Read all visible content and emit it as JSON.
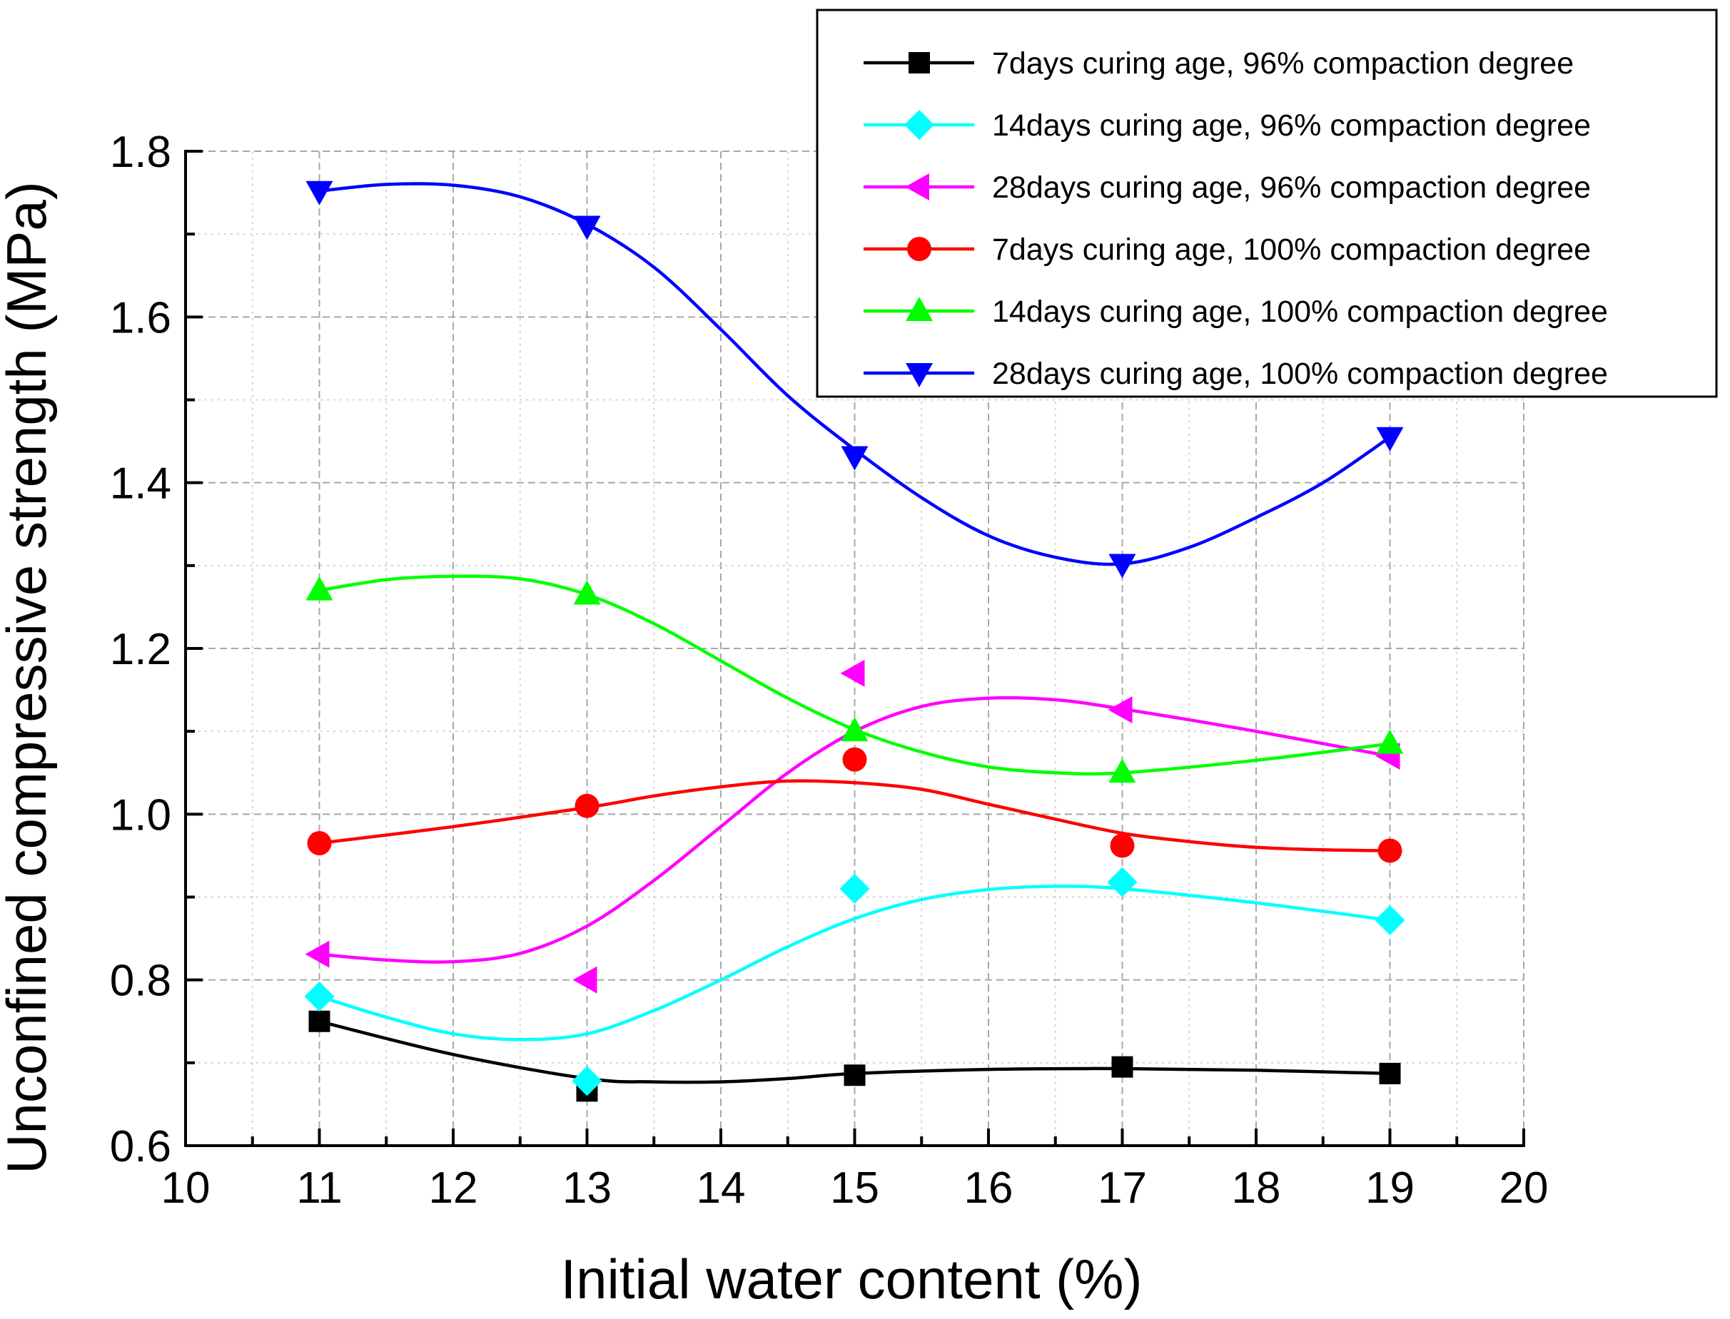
{
  "chart_data": {
    "type": "line",
    "title": "",
    "xlabel": "Initial water content (%)",
    "ylabel": "Unconfined compressive strength (MPa)",
    "xlim": [
      10,
      20
    ],
    "ylim": [
      0.6,
      1.8
    ],
    "x_major_ticks": [
      10,
      11,
      12,
      13,
      14,
      15,
      16,
      17,
      18,
      19,
      20
    ],
    "x_tick_labels": [
      "10",
      "11",
      "12",
      "13",
      "14",
      "15",
      "16",
      "17",
      "18",
      "19",
      "20"
    ],
    "y_major_ticks": [
      0.6,
      0.8,
      1.0,
      1.2,
      1.4,
      1.6,
      1.8
    ],
    "y_tick_labels": [
      "0.6",
      "0.8",
      "1.0",
      "1.2",
      "1.4",
      "1.6",
      "1.8"
    ],
    "grid": true,
    "legend_position": "top-right",
    "series": [
      {
        "name": "7days curing age, 96% compaction degree",
        "color": "#000000",
        "marker": "square",
        "x": [
          11,
          13,
          15,
          17,
          19
        ],
        "values": [
          0.75,
          0.666,
          0.685,
          0.695,
          0.687
        ],
        "fit_curve": [
          [
            11,
            0.75
          ],
          [
            12,
            0.71
          ],
          [
            13,
            0.681
          ],
          [
            13.5,
            0.677
          ],
          [
            14,
            0.677
          ],
          [
            14.5,
            0.681
          ],
          [
            15,
            0.687
          ],
          [
            16,
            0.692
          ],
          [
            17,
            0.693
          ],
          [
            18,
            0.691
          ],
          [
            19,
            0.687
          ]
        ]
      },
      {
        "name": "14days curing age, 96% compaction degree",
        "color": "#00FFFF",
        "marker": "diamond",
        "x": [
          11,
          13,
          15,
          17,
          19
        ],
        "values": [
          0.78,
          0.678,
          0.91,
          0.918,
          0.872
        ],
        "fit_curve": [
          [
            11,
            0.78
          ],
          [
            11.5,
            0.755
          ],
          [
            12,
            0.735
          ],
          [
            12.5,
            0.728
          ],
          [
            13,
            0.735
          ],
          [
            13.5,
            0.763
          ],
          [
            14,
            0.8
          ],
          [
            14.5,
            0.84
          ],
          [
            15,
            0.874
          ],
          [
            15.5,
            0.897
          ],
          [
            16,
            0.909
          ],
          [
            16.5,
            0.913
          ],
          [
            17,
            0.91
          ],
          [
            18,
            0.893
          ],
          [
            19,
            0.872
          ]
        ]
      },
      {
        "name": "28days curing age, 96% compaction degree",
        "color": "#FF00FF",
        "marker": "triangle-left",
        "x": [
          11,
          13,
          15,
          17,
          19
        ],
        "values": [
          0.831,
          0.8,
          1.17,
          1.126,
          1.07
        ],
        "fit_curve": [
          [
            11,
            0.831
          ],
          [
            11.5,
            0.824
          ],
          [
            12,
            0.822
          ],
          [
            12.5,
            0.832
          ],
          [
            13,
            0.865
          ],
          [
            13.5,
            0.92
          ],
          [
            14,
            0.985
          ],
          [
            14.5,
            1.05
          ],
          [
            15,
            1.1
          ],
          [
            15.5,
            1.13
          ],
          [
            16,
            1.14
          ],
          [
            16.5,
            1.138
          ],
          [
            17,
            1.127
          ],
          [
            18,
            1.1
          ],
          [
            19,
            1.07
          ]
        ]
      },
      {
        "name": "7days curing age, 100% compaction degree",
        "color": "#FF0000",
        "marker": "circle",
        "x": [
          11,
          13,
          15,
          17,
          19
        ],
        "values": [
          0.965,
          1.01,
          1.066,
          0.962,
          0.956
        ],
        "fit_curve": [
          [
            11,
            0.965
          ],
          [
            12,
            0.985
          ],
          [
            13,
            1.008
          ],
          [
            13.5,
            1.022
          ],
          [
            14,
            1.033
          ],
          [
            14.5,
            1.04
          ],
          [
            15,
            1.038
          ],
          [
            15.5,
            1.03
          ],
          [
            16,
            1.012
          ],
          [
            16.5,
            0.994
          ],
          [
            17,
            0.977
          ],
          [
            17.5,
            0.967
          ],
          [
            18,
            0.96
          ],
          [
            18.5,
            0.957
          ],
          [
            19,
            0.956
          ]
        ]
      },
      {
        "name": "14days curing age, 100% compaction degree",
        "color": "#00FF00",
        "marker": "triangle-up",
        "x": [
          11,
          13,
          15,
          17,
          19
        ],
        "values": [
          1.27,
          1.265,
          1.1,
          1.05,
          1.085
        ],
        "fit_curve": [
          [
            11,
            1.27
          ],
          [
            11.5,
            1.283
          ],
          [
            12,
            1.287
          ],
          [
            12.5,
            1.284
          ],
          [
            13,
            1.265
          ],
          [
            13.5,
            1.23
          ],
          [
            14,
            1.185
          ],
          [
            14.5,
            1.14
          ],
          [
            15,
            1.102
          ],
          [
            15.5,
            1.075
          ],
          [
            16,
            1.057
          ],
          [
            16.5,
            1.05
          ],
          [
            17,
            1.05
          ],
          [
            18,
            1.065
          ],
          [
            19,
            1.085
          ]
        ]
      },
      {
        "name": "28days curing age, 100% compaction degree",
        "color": "#0000FF",
        "marker": "triangle-down",
        "x": [
          11,
          13,
          15,
          17,
          19
        ],
        "values": [
          1.752,
          1.71,
          1.432,
          1.302,
          1.455
        ],
        "fit_curve": [
          [
            11,
            1.752
          ],
          [
            11.5,
            1.76
          ],
          [
            12,
            1.759
          ],
          [
            12.5,
            1.745
          ],
          [
            13,
            1.712
          ],
          [
            13.5,
            1.66
          ],
          [
            14,
            1.585
          ],
          [
            14.5,
            1.505
          ],
          [
            15,
            1.44
          ],
          [
            15.5,
            1.382
          ],
          [
            16,
            1.336
          ],
          [
            16.5,
            1.31
          ],
          [
            17,
            1.302
          ],
          [
            17.5,
            1.322
          ],
          [
            18,
            1.358
          ],
          [
            18.5,
            1.4
          ],
          [
            19,
            1.455
          ]
        ]
      }
    ]
  }
}
